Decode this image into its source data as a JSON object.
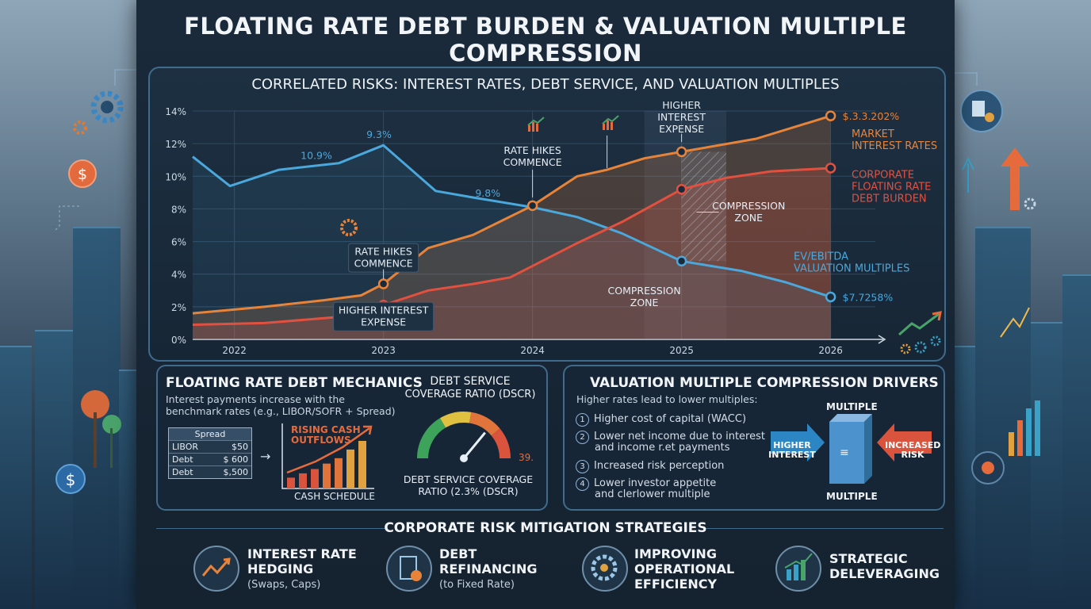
{
  "title": "FLOATING RATE DEBT BURDEN & VALUATION MULTIPLE COMPRESSION",
  "chart_data": {
    "type": "line",
    "title": "CORRELATED RISKS: INTEREST RATES, DEBT SERVICE, AND VALUATION MULTIPLES",
    "x": [
      2022,
      2023,
      2024,
      2025,
      2026
    ],
    "ylim": [
      0,
      14
    ],
    "y_ticks": [
      "0%",
      "2%",
      "4%",
      "6%",
      "8%",
      "10%",
      "12%",
      "14%"
    ],
    "x_ticks": [
      "2022",
      "2023",
      "2024",
      "2025",
      "2026"
    ],
    "series": [
      {
        "name": "MARKET INTEREST RATES",
        "color": "#e8843a",
        "points": [
          [
            2021.72,
            1.6
          ],
          [
            2022.2,
            2.0
          ],
          [
            2022.6,
            2.4
          ],
          [
            2022.85,
            2.7
          ],
          [
            2023.0,
            3.4
          ],
          [
            2023.3,
            5.6
          ],
          [
            2023.6,
            6.4
          ],
          [
            2024.0,
            8.2
          ],
          [
            2024.3,
            10.0
          ],
          [
            2024.5,
            10.4
          ],
          [
            2024.75,
            11.1
          ],
          [
            2025.0,
            11.5
          ],
          [
            2025.5,
            12.3
          ],
          [
            2026.0,
            13.7
          ]
        ]
      },
      {
        "name": "CORPORATE FLOATING RATE DEBT BURDEN",
        "color": "#e2503f",
        "points": [
          [
            2021.72,
            0.9
          ],
          [
            2022.2,
            1.0
          ],
          [
            2022.6,
            1.3
          ],
          [
            2022.85,
            1.5
          ],
          [
            2023.0,
            2.1
          ],
          [
            2023.3,
            3.0
          ],
          [
            2023.6,
            3.4
          ],
          [
            2023.85,
            3.8
          ],
          [
            2024.0,
            4.5
          ],
          [
            2024.3,
            5.9
          ],
          [
            2024.6,
            7.2
          ],
          [
            2025.0,
            9.2
          ],
          [
            2025.3,
            9.9
          ],
          [
            2025.6,
            10.3
          ],
          [
            2026.0,
            10.5
          ]
        ]
      },
      {
        "name": "EV/EBITDA VALUATION MULTIPLES",
        "color": "#4aa8dc",
        "points": [
          [
            2021.72,
            11.2
          ],
          [
            2021.97,
            9.4
          ],
          [
            2022.3,
            10.4
          ],
          [
            2022.7,
            10.8
          ],
          [
            2023.0,
            11.9
          ],
          [
            2023.35,
            9.1
          ],
          [
            2023.6,
            8.7
          ],
          [
            2024.0,
            8.1
          ],
          [
            2024.3,
            7.5
          ],
          [
            2024.6,
            6.5
          ],
          [
            2025.0,
            4.8
          ],
          [
            2025.4,
            4.2
          ],
          [
            2025.7,
            3.5
          ],
          [
            2026.0,
            2.6
          ]
        ]
      }
    ],
    "data_labels": [
      {
        "text": "10.9%",
        "x": 2022.55,
        "y": 11.3
      },
      {
        "text": "9.3%",
        "x": 2022.97,
        "y": 12.6
      },
      {
        "text": "9.8%",
        "x": 2023.7,
        "y": 9.0
      },
      {
        "text": "$.3.3.202%",
        "x": 2026.08,
        "y": 13.7
      },
      {
        "text": "$7.7258%",
        "x": 2026.08,
        "y": 2.6
      }
    ],
    "annotations": [
      {
        "text": "RATE HIKES\nCOMMENCE",
        "x": 2023.0,
        "y": 5.0
      },
      {
        "text": "HIGHER INTEREST\nEXPENSE",
        "x": 2023.0,
        "y": 1.4
      },
      {
        "text": "RATE HIKES\nCOMMENCE",
        "x": 2024.0,
        "y": 11.2
      },
      {
        "text": "HIGHER\nINTEREST\nEXPENSE",
        "x": 2025.0,
        "y": 13.6
      },
      {
        "text": "COMPRESSION\nZONE",
        "x": 2025.45,
        "y": 7.8
      },
      {
        "text": "COMPRESSION\nZONE",
        "x": 2024.75,
        "y": 2.6
      }
    ],
    "legend": [
      {
        "text": "MARKET\nINTEREST RATES",
        "color": "#e8843a"
      },
      {
        "text": "CORPORATE\nFLOATING RATE\nDEBT BURDEN",
        "color": "#e2503f"
      },
      {
        "text": "EV/EBITDA\nVALUATION MULTIPLES",
        "color": "#4aa8dc"
      }
    ],
    "compression_zone": [
      2024.75,
      2025.3
    ],
    "grid": true
  },
  "mechanics": {
    "title": "FLOATING RATE DEBT MECHANICS",
    "desc_line1": "Interest payments increase with the",
    "desc_line2": "benchmark rates (e.g., LIBOR/SOFR + Spread)",
    "table_header": "Spread",
    "rows": [
      {
        "label": "LIBOR",
        "value": "$50"
      },
      {
        "label": "Debt",
        "value": "$ 600"
      },
      {
        "label": "Debt",
        "value": "$,500"
      }
    ],
    "mini_chart_label1": "RISING CASH",
    "mini_chart_label2": "OUTFLOWS",
    "mini_chart_values": [
      1,
      1.4,
      1.8,
      2.3,
      2.8,
      3.6,
      4.4
    ],
    "mini_chart_caption": "CASH SCHEDULE",
    "dscr_title1": "DEBT SERVICE",
    "dscr_title2": "COVERAGE RATIO (DSCR)",
    "dscr_side": "39.",
    "dscr_level": 0.72,
    "dscr_caption1": "DEBT SERVICE COVERAGE",
    "dscr_caption2": "RATIO (2.3% (DSCR)"
  },
  "drivers": {
    "title": "VALUATION MULTIPLE COMPRESSION DRIVERS",
    "intro": "Higher rates lead to lower multiples:",
    "items": [
      {
        "num": "1",
        "line1": "Higher cost of capital (WACC)",
        "line2": ""
      },
      {
        "num": "2",
        "line1": "Lower net income due to interest",
        "line2": "and income r.et payments"
      },
      {
        "num": "3",
        "line1": "Increased risk perception",
        "line2": ""
      },
      {
        "num": "4",
        "line1": "Lower investor appetite",
        "line2": "and clerlower multiple"
      }
    ],
    "multiple_top": "MULTIPLE",
    "multiple_bottom": "MULTIPLE",
    "left_arrow": "HIGHER\nINTEREST",
    "right_arrow": "INCREASED\nRISK",
    "block_glyph": "≡"
  },
  "mitigation": {
    "title": "CORPORATE RISK MITIGATION STRATEGIES",
    "items": [
      {
        "line1": "INTEREST RATE",
        "line2": "HEDGING",
        "sub": "(Swaps, Caps)",
        "icon": "trend-arrow-icon"
      },
      {
        "line1": "DEBT",
        "line2": "REFINANCING",
        "sub": "(to Fixed Rate)",
        "icon": "document-dollar-icon"
      },
      {
        "line1": "IMPROVING",
        "line2": "OPERATIONAL",
        "line3": "EFFICIENCY",
        "icon": "gear-icon"
      },
      {
        "line1": "STRATEGIC",
        "line2": "DELEVERAGING",
        "icon": "bar-chart-icon"
      }
    ]
  },
  "colors": {
    "rates": "#e8843a",
    "debt": "#e2503f",
    "multiples": "#4aa8dc",
    "border": "#3f6b8c"
  }
}
